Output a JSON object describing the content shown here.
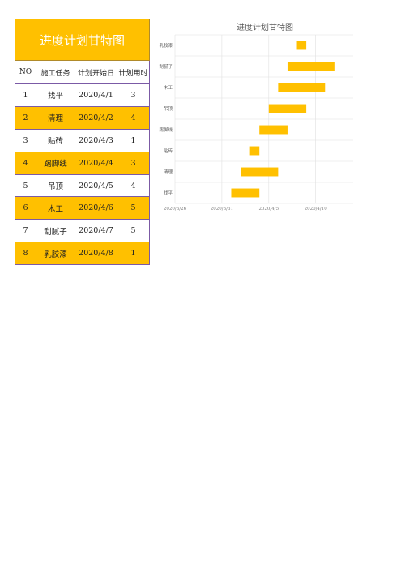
{
  "table": {
    "title": "进度计划甘特图",
    "headers": [
      "NO",
      "施工任务",
      "计划开始日",
      "计划用时"
    ],
    "rows": [
      [
        "1",
        "找平",
        "2020/4/1",
        "3"
      ],
      [
        "2",
        "清理",
        "2020/4/2",
        "4"
      ],
      [
        "3",
        "贴砖",
        "2020/4/3",
        "1"
      ],
      [
        "4",
        "踢脚线",
        "2020/4/4",
        "3"
      ],
      [
        "5",
        "吊顶",
        "2020/4/5",
        "4"
      ],
      [
        "6",
        "木工",
        "2020/4/6",
        "5"
      ],
      [
        "7",
        "刮腻子",
        "2020/4/7",
        "5"
      ],
      [
        "8",
        "乳胶漆",
        "2020/4/8",
        "1"
      ]
    ]
  },
  "colors": {
    "accent": "#ffc000",
    "border": "#7b5aa6",
    "grid": "#e0e0e0"
  },
  "chart_data": {
    "type": "bar",
    "orientation": "horizontal-gantt",
    "title": "进度计划甘特图",
    "categories": [
      "找平",
      "清理",
      "贴砖",
      "踢脚线",
      "吊顶",
      "木工",
      "刮腻子",
      "乳胶漆"
    ],
    "start_dates": [
      "2020/4/1",
      "2020/4/2",
      "2020/4/3",
      "2020/4/4",
      "2020/4/5",
      "2020/4/6",
      "2020/4/7",
      "2020/4/8"
    ],
    "durations": [
      3,
      4,
      1,
      3,
      4,
      5,
      5,
      1
    ],
    "x_ticks": [
      "2020/3/26",
      "2020/3/31",
      "2020/4/5",
      "2020/4/10"
    ],
    "xlim": [
      "2020/3/26",
      "2020/4/14"
    ],
    "grid": true,
    "legend": "none",
    "bar_color": "#ffc000"
  }
}
